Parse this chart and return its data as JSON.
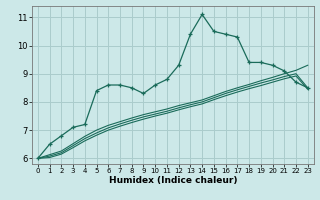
{
  "xlabel": "Humidex (Indice chaleur)",
  "ylabel": "",
  "bg_color": "#cce8e8",
  "grid_color": "#aacccc",
  "line_color": "#1a6b5a",
  "x_data": [
    0,
    1,
    2,
    3,
    4,
    5,
    6,
    7,
    8,
    9,
    10,
    11,
    12,
    13,
    14,
    15,
    16,
    17,
    18,
    19,
    20,
    21,
    22,
    23
  ],
  "y_main": [
    6.0,
    6.5,
    6.8,
    7.1,
    7.2,
    8.4,
    8.6,
    8.6,
    8.5,
    8.3,
    8.6,
    8.8,
    9.3,
    10.4,
    11.1,
    10.5,
    10.4,
    10.3,
    9.4,
    9.4,
    9.3,
    9.1,
    8.7,
    8.5
  ],
  "y_line1": [
    6.0,
    6.13,
    6.26,
    6.52,
    6.78,
    7.0,
    7.17,
    7.3,
    7.43,
    7.55,
    7.65,
    7.75,
    7.87,
    7.97,
    8.07,
    8.22,
    8.37,
    8.5,
    8.62,
    8.75,
    8.87,
    9.0,
    9.12,
    9.3
  ],
  "y_line2": [
    6.0,
    6.08,
    6.2,
    6.45,
    6.7,
    6.9,
    7.08,
    7.22,
    7.35,
    7.47,
    7.57,
    7.67,
    7.79,
    7.9,
    8.0,
    8.15,
    8.3,
    8.43,
    8.55,
    8.67,
    8.78,
    8.9,
    9.0,
    8.5
  ],
  "y_line3": [
    6.0,
    6.03,
    6.15,
    6.38,
    6.62,
    6.82,
    7.0,
    7.14,
    7.27,
    7.39,
    7.5,
    7.6,
    7.72,
    7.83,
    7.93,
    8.08,
    8.22,
    8.35,
    8.47,
    8.58,
    8.7,
    8.82,
    8.92,
    8.45
  ],
  "ylim": [
    5.8,
    11.4
  ],
  "xlim": [
    -0.5,
    23.5
  ],
  "yticks": [
    6,
    7,
    8,
    9,
    10,
    11
  ],
  "xticks": [
    0,
    1,
    2,
    3,
    4,
    5,
    6,
    7,
    8,
    9,
    10,
    11,
    12,
    13,
    14,
    15,
    16,
    17,
    18,
    19,
    20,
    21,
    22,
    23
  ]
}
